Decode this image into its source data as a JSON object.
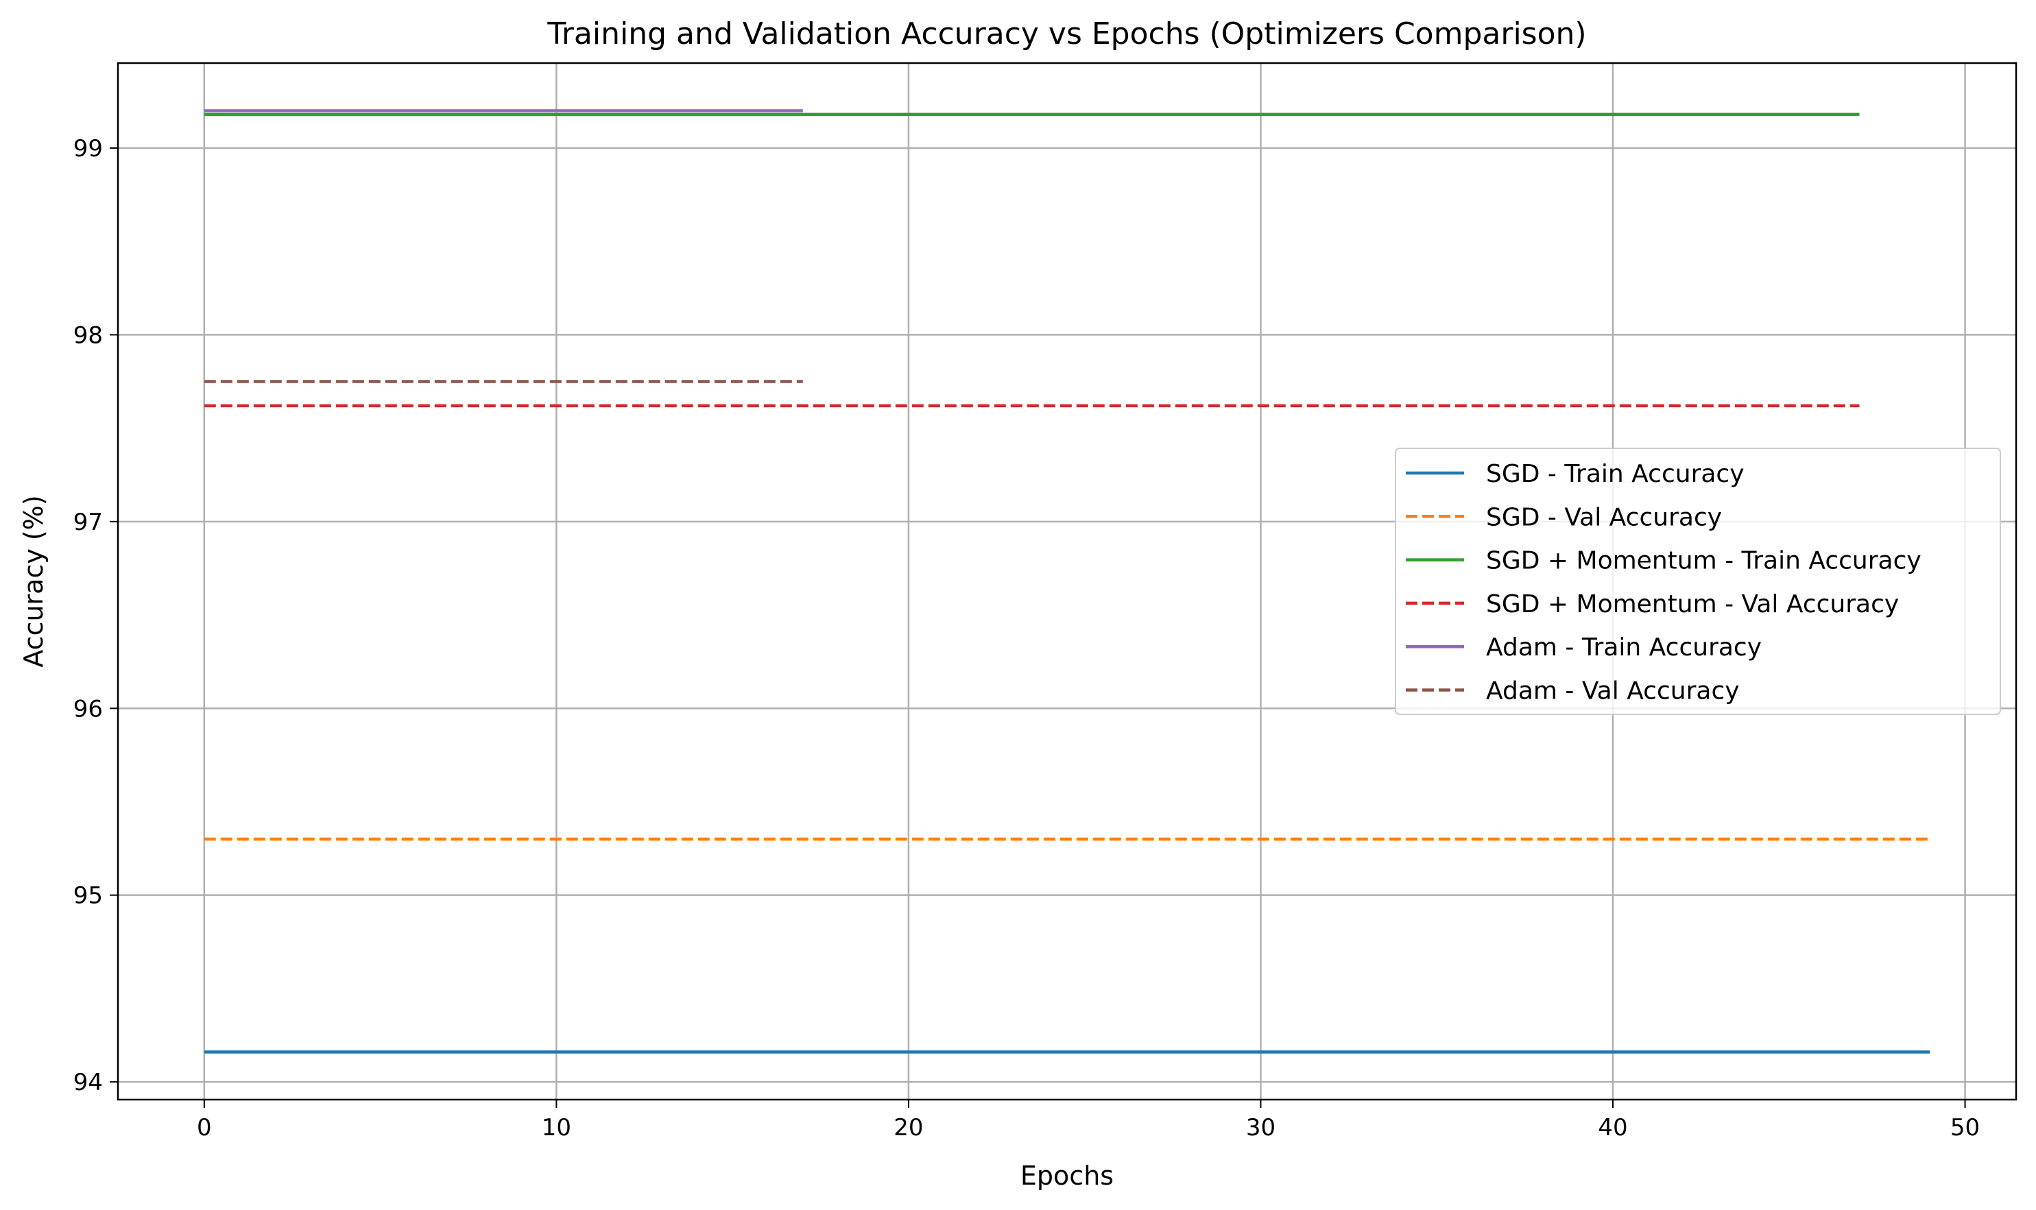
{
  "chart_data": {
    "type": "line",
    "title": "Training and Validation Accuracy vs Epochs (Optimizers Comparison)",
    "xlabel": "Epochs",
    "ylabel": "Accuracy (%)",
    "xlim": [
      -2.45,
      51.45
    ],
    "ylim": [
      93.905,
      99.455
    ],
    "xticks": [
      0,
      10,
      20,
      30,
      40,
      50
    ],
    "yticks": [
      94,
      95,
      96,
      97,
      98,
      99
    ],
    "grid": true,
    "legend_position": "center-right",
    "series": [
      {
        "name": "SGD - Train Accuracy",
        "color": "#1f77b4",
        "dash": "solid",
        "x": [
          0,
          49
        ],
        "y": [
          94.16,
          94.16
        ]
      },
      {
        "name": "SGD - Val Accuracy",
        "color": "#ff7f0e",
        "dash": "dashed",
        "x": [
          0,
          49
        ],
        "y": [
          95.3,
          95.3
        ]
      },
      {
        "name": "SGD + Momentum - Train Accuracy",
        "color": "#2ca02c",
        "dash": "solid",
        "x": [
          0,
          47
        ],
        "y": [
          99.18,
          99.18
        ]
      },
      {
        "name": "SGD + Momentum - Val Accuracy",
        "color": "#d62728",
        "dash": "dashed",
        "x": [
          0,
          47
        ],
        "y": [
          97.62,
          97.62
        ]
      },
      {
        "name": "Adam - Train Accuracy",
        "color": "#9467bd",
        "dash": "solid",
        "x": [
          0,
          17
        ],
        "y": [
          99.2,
          99.2
        ]
      },
      {
        "name": "Adam - Val Accuracy",
        "color": "#8c564b",
        "dash": "dashed",
        "x": [
          0,
          17
        ],
        "y": [
          97.75,
          97.75
        ]
      }
    ]
  }
}
